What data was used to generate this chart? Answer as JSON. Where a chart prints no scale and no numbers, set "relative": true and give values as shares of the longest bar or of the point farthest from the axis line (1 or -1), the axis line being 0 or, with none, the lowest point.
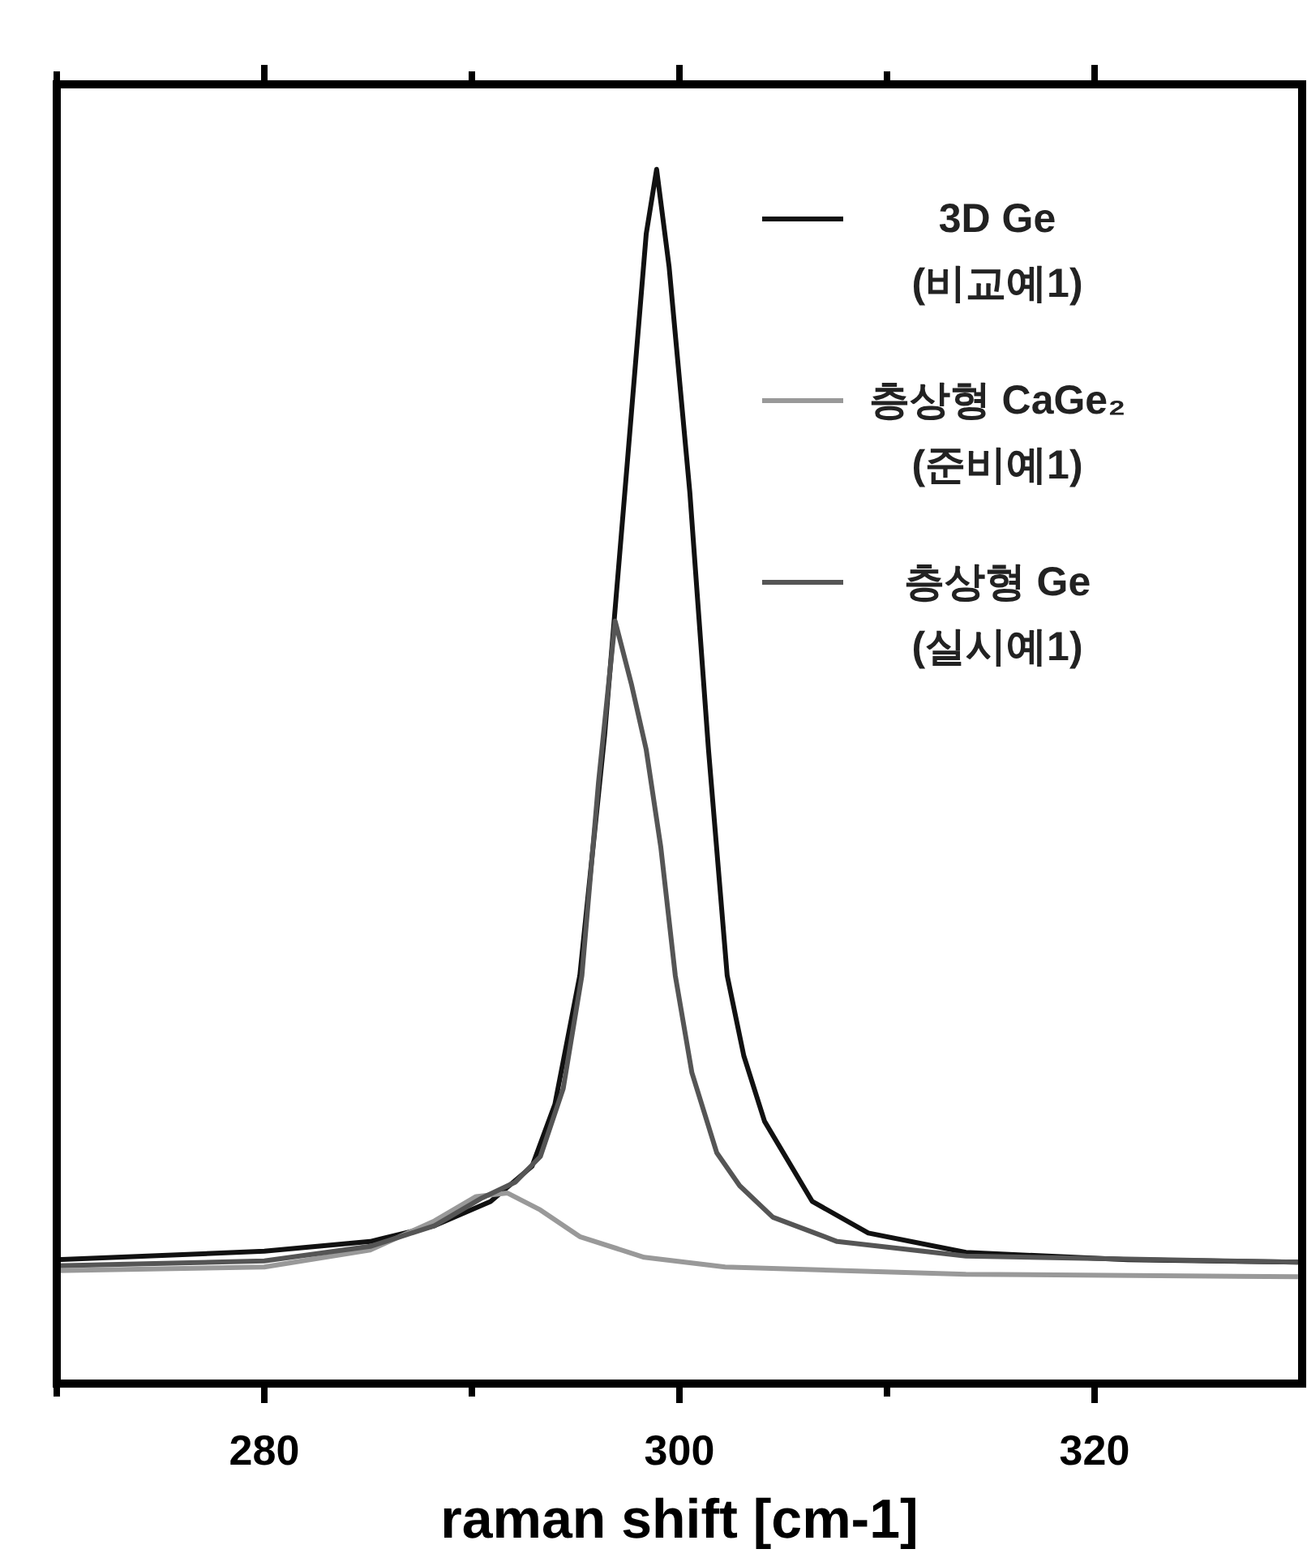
{
  "chart_data": {
    "type": "line",
    "relative": true,
    "xlabel": "raman shift [cm-1]",
    "xlim": [
      270,
      330
    ],
    "xticks": [
      {
        "value": 270,
        "label": null
      },
      280,
      {
        "value": 290,
        "label": null
      },
      300,
      {
        "value": 310,
        "label": null
      },
      320
    ],
    "legend": "top right",
    "line_style": "solid",
    "tick_labels": "x",
    "series": [
      {
        "name": "3D Ge\n(비교예1)",
        "color": "#111111",
        "x": [
          270,
          280,
          285.1,
          288.2,
          290.9,
          292.9,
          294.0,
          295.2,
          296.4,
          297.5,
          298.4,
          298.9,
          299.5,
          300.5,
          301.4,
          302.3,
          303.1,
          304.1,
          306.4,
          309.1,
          313.8,
          321.6,
          329.8
        ],
        "values": [
          0.102,
          0.109,
          0.117,
          0.13,
          0.15,
          0.179,
          0.23,
          0.336,
          0.535,
          0.761,
          0.947,
          1,
          0.92,
          0.734,
          0.522,
          0.336,
          0.27,
          0.216,
          0.15,
          0.124,
          0.108,
          0.102,
          0.1
        ]
      },
      {
        "name": "층상형 CaGe₂\n(준비예1)",
        "color": "#999999",
        "x": [
          270,
          280,
          285.1,
          288.2,
          290.2,
          291.7,
          293.3,
          295.2,
          298.3,
          302.2,
          313.8,
          329.8
        ],
        "values": [
          0.093,
          0.096,
          0.11,
          0.134,
          0.154,
          0.157,
          0.143,
          0.121,
          0.104,
          0.096,
          0.09,
          0.088
        ]
      },
      {
        "name": "층상형 Ge\n(실시예1)",
        "color": "#555555",
        "x": [
          270,
          280,
          285.1,
          288.2,
          290.5,
          292.1,
          293.3,
          294.4,
          295.3,
          296.1,
          296.9,
          297.7,
          298.4,
          299.1,
          299.8,
          300.6,
          301.8,
          302.9,
          304.5,
          307.6,
          313.8,
          329.8
        ],
        "values": [
          0.097,
          0.101,
          0.113,
          0.13,
          0.153,
          0.166,
          0.187,
          0.243,
          0.336,
          0.495,
          0.628,
          0.575,
          0.522,
          0.442,
          0.336,
          0.256,
          0.19,
          0.163,
          0.137,
          0.117,
          0.105,
          0.1
        ]
      }
    ]
  }
}
